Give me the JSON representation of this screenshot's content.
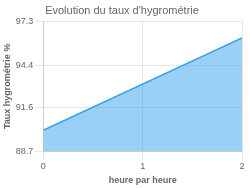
{
  "chart_data": {
    "type": "area",
    "title": "Evolution du taux d'hygrométrie",
    "xlabel": "heure par heure",
    "ylabel": "Taux hygrométrie %",
    "x": [
      0,
      2
    ],
    "values": [
      90.1,
      96.2
    ],
    "xlim": [
      0,
      2
    ],
    "ylim": [
      88.7,
      97.3
    ],
    "xticks": [
      0,
      1,
      2
    ],
    "yticks": [
      88.7,
      91.6,
      94.4,
      97.3
    ],
    "grid": true
  }
}
